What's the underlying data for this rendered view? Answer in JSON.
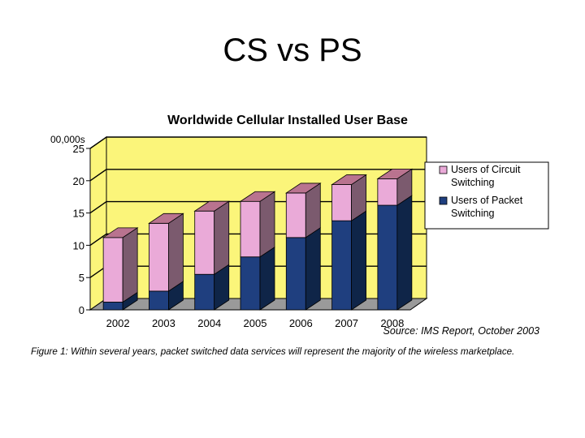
{
  "slide": {
    "title": "CS vs PS"
  },
  "chart_data": {
    "type": "bar",
    "stacked": true,
    "three_d": true,
    "title": "Worldwide Cellular Installed User Base",
    "ylabel": "00,000s",
    "xlabel": "",
    "categories": [
      "2002",
      "2003",
      "2004",
      "2005",
      "2006",
      "2007",
      "2008"
    ],
    "series": [
      {
        "name": "Users of Packet Switching",
        "values": [
          1.2,
          2.9,
          5.5,
          8.2,
          11.2,
          13.8,
          16.2
        ],
        "color": "#1f3f7f"
      },
      {
        "name": "Users of Circuit Switching",
        "values": [
          10.0,
          10.5,
          9.8,
          8.6,
          6.9,
          5.6,
          4.1
        ],
        "color": "#eaaad8"
      }
    ],
    "legend_labels": [
      [
        "Users of Circuit",
        "Switching"
      ],
      [
        "Users of Packet",
        "Switching"
      ]
    ],
    "ylim": [
      0,
      25
    ],
    "yticks": [
      0,
      5,
      10,
      15,
      20,
      25
    ],
    "grid": true,
    "legend_position": "right",
    "source": "Source: IMS Report, October 2003",
    "caption": "Figure 1: Within several years, packet switched data services will represent the majority of the wireless marketplace.",
    "colors": {
      "wall": "#fbf57a",
      "floor": "#9a9a9a",
      "side_dark": "#0f2548",
      "side_pink": "#7b5a6e",
      "top_pink": "#b9738f"
    }
  }
}
